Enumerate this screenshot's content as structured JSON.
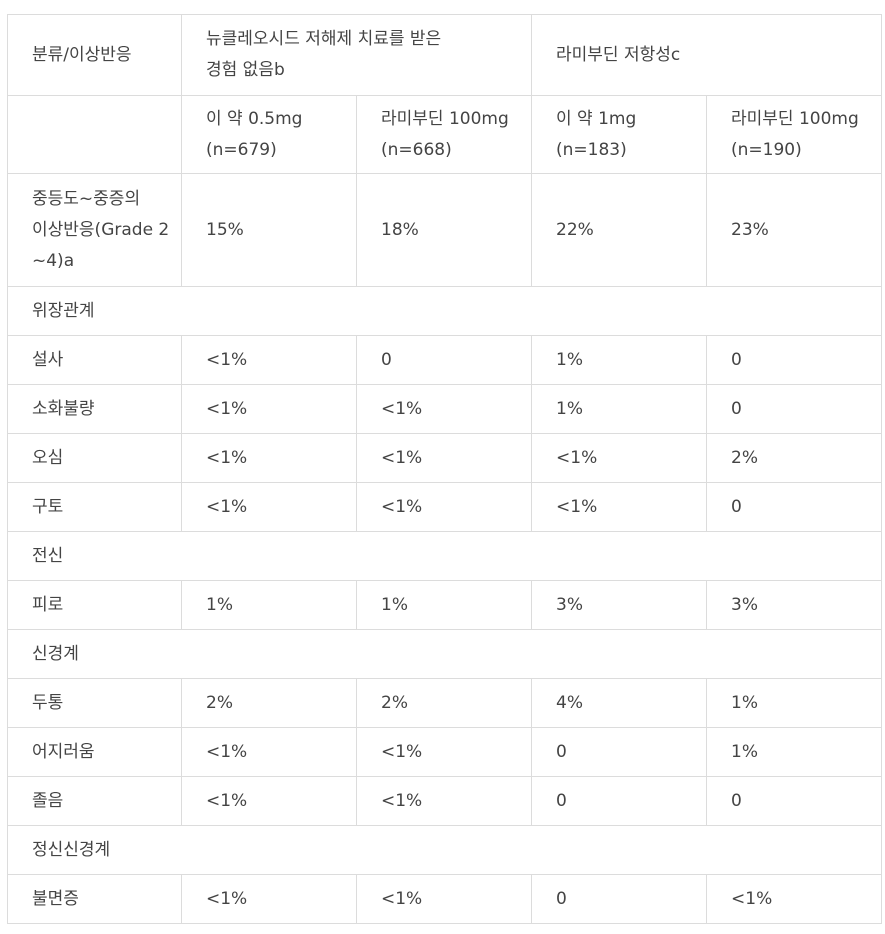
{
  "table": {
    "header_row_1": {
      "category": "분류/이상반응",
      "group_1": [
        "뉴클레오시드 저해제 치료를 받은",
        "경험 없음b"
      ],
      "group_2": "라미부딘 저항성c"
    },
    "header_row_2": [
      [
        "이 약 0.5mg",
        "(n=679)"
      ],
      [
        "라미부딘 100mg",
        "(n=668)"
      ],
      [
        "이 약 1mg",
        "(n=183)"
      ],
      [
        "라미부딘 100mg",
        "(n=190)"
      ]
    ],
    "summary_row": {
      "label": [
        "중등도~중증의",
        "이상반응(Grade 2",
        "~4)a"
      ],
      "values": [
        "15%",
        "18%",
        "22%",
        "23%"
      ]
    },
    "sections": [
      {
        "title": "위장관계",
        "rows": [
          {
            "label": "설사",
            "values": [
              "<1%",
              "0",
              "1%",
              "0"
            ]
          },
          {
            "label": "소화불량",
            "values": [
              "<1%",
              "<1%",
              "1%",
              "0"
            ]
          },
          {
            "label": "오심",
            "values": [
              "<1%",
              "<1%",
              "<1%",
              "2%"
            ]
          },
          {
            "label": "구토",
            "values": [
              "<1%",
              "<1%",
              "<1%",
              "0"
            ]
          }
        ]
      },
      {
        "title": "전신",
        "rows": [
          {
            "label": "피로",
            "values": [
              "1%",
              "1%",
              "3%",
              "3%"
            ]
          }
        ]
      },
      {
        "title": "신경계",
        "rows": [
          {
            "label": "두통",
            "values": [
              "2%",
              "2%",
              "4%",
              "1%"
            ]
          },
          {
            "label": "어지러움",
            "values": [
              "<1%",
              "<1%",
              "0",
              "1%"
            ]
          },
          {
            "label": "졸음",
            "values": [
              "<1%",
              "<1%",
              "0",
              "0"
            ]
          }
        ]
      },
      {
        "title": "정신신경계",
        "rows": [
          {
            "label": "불면증",
            "values": [
              "<1%",
              "<1%",
              "0",
              "<1%"
            ]
          }
        ]
      }
    ]
  }
}
